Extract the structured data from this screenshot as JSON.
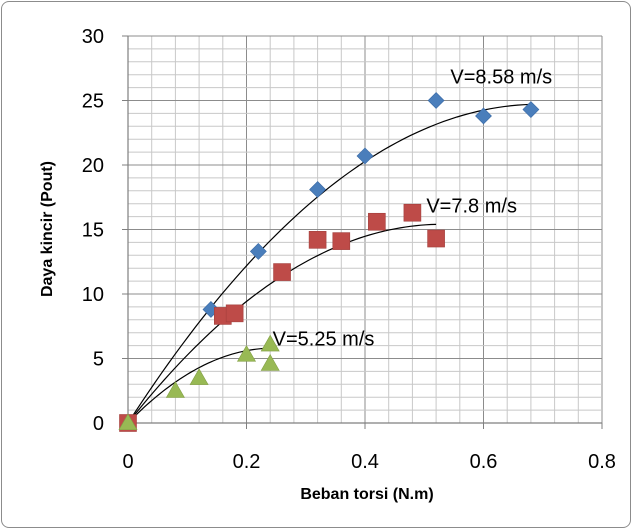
{
  "chart_data": {
    "type": "scatter",
    "xlabel": "Beban torsi (N.m)",
    "ylabel": "Daya kincir (Pout)",
    "xlim": [
      0,
      0.8
    ],
    "ylim": [
      0,
      30
    ],
    "x_ticks": [
      "0",
      "0.2",
      "0.4",
      "0.6",
      "0.8"
    ],
    "y_ticks": [
      "0",
      "5",
      "10",
      "15",
      "20",
      "25",
      "30"
    ],
    "grid": true,
    "trendline": "polynomial",
    "series": [
      {
        "name": "V=8.58 m/s",
        "marker": "diamond",
        "color": "#4a7ebb",
        "points": [
          [
            0,
            0
          ],
          [
            0.14,
            8.8
          ],
          [
            0.22,
            13.3
          ],
          [
            0.32,
            18.1
          ],
          [
            0.4,
            20.7
          ],
          [
            0.52,
            25.0
          ],
          [
            0.6,
            23.8
          ],
          [
            0.68,
            24.3
          ]
        ],
        "trend": [
          [
            0,
            0
          ],
          [
            0.68,
            24.7
          ]
        ]
      },
      {
        "name": "V=7.8 m/s",
        "marker": "square",
        "color": "#be4b48",
        "points": [
          [
            0,
            0
          ],
          [
            0.16,
            8.3
          ],
          [
            0.18,
            8.5
          ],
          [
            0.26,
            11.7
          ],
          [
            0.32,
            14.2
          ],
          [
            0.36,
            14.1
          ],
          [
            0.42,
            15.6
          ],
          [
            0.48,
            16.3
          ],
          [
            0.52,
            14.3
          ]
        ],
        "trend": [
          [
            0,
            0
          ],
          [
            0.52,
            15.4
          ]
        ]
      },
      {
        "name": "V=5.25 m/s",
        "marker": "triangle",
        "color": "#98b954",
        "points": [
          [
            0,
            0
          ],
          [
            0.08,
            2.5
          ],
          [
            0.12,
            3.5
          ],
          [
            0.2,
            5.3
          ],
          [
            0.24,
            6.1
          ],
          [
            0.24,
            4.6
          ]
        ],
        "trend": [
          [
            0,
            0
          ],
          [
            0.24,
            5.8
          ]
        ]
      }
    ]
  }
}
